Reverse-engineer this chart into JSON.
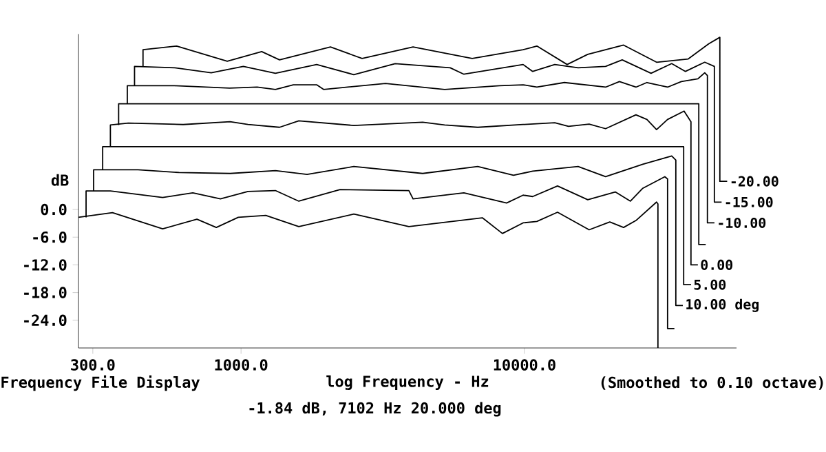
{
  "chart_data": {
    "type": "line",
    "log": "x",
    "xlabel": "log Frequency - Hz",
    "ylabel": "dB",
    "xlim": [
      267,
      56000
    ],
    "ylim": [
      -30,
      38
    ],
    "xticks": [
      {
        "value": 300,
        "label": "300.0"
      },
      {
        "value": 1000,
        "label": "1000.0"
      },
      {
        "value": 10000,
        "label": "10000.0"
      }
    ],
    "yticks": [
      {
        "value": 0,
        "label": "0.0"
      },
      {
        "value": -6,
        "label": "-6.0"
      },
      {
        "value": -12,
        "label": "-12.0"
      },
      {
        "value": -18,
        "label": "-18.0"
      },
      {
        "value": -24,
        "label": "-24.0"
      }
    ],
    "annotations": [
      "Frequency File Display",
      "(Smoothed to 0.10 octave)",
      "-1.84 dB, 7102 Hz 20.000 deg"
    ],
    "series": [
      {
        "color": "#000000",
        "x": [
          267,
          352,
          529,
          699,
          818,
          978,
          1223,
          1599,
          2500,
          3910,
          7102,
          8360,
          9890,
          11060,
          13080,
          16910,
          20000,
          22370,
          24730,
          29240,
          29570,
          29570
        ],
        "values": [
          -1.7,
          -0.7,
          -4.2,
          -2.1,
          -3.9,
          -1.7,
          -1.3,
          -3.7,
          -1.0,
          -3.7,
          -1.8,
          -5.2,
          -2.9,
          -2.6,
          -0.6,
          -4.4,
          -2.7,
          -3.9,
          -2.4,
          1.6,
          1.2,
          -30
        ]
      },
      {
        "color": "#000000",
        "x": [
          284,
          284,
          346,
          529,
          676,
          846,
          1058,
          1322,
          1599,
          2236,
          3910,
          4045,
          6113,
          8650,
          9890,
          10690,
          13080,
          16720,
          20910,
          23650,
          26150,
          31270,
          31980,
          31980,
          33800
        ],
        "values": [
          -1.7,
          4.0,
          4.0,
          2.6,
          3.6,
          2.3,
          3.9,
          4.1,
          1.8,
          4.3,
          4.1,
          2.3,
          3.6,
          1.4,
          3.1,
          2.8,
          5.1,
          2.1,
          3.8,
          1.8,
          4.6,
          7.1,
          6.6,
          -25.8,
          -25.8
        ]
      },
      {
        "name": "10.00 deg",
        "color": "#000000",
        "x": [
          302,
          302,
          433,
          605,
          915,
          1322,
          1710,
          2500,
          4374,
          6839,
          9147,
          10690,
          15460,
          19330,
          26150,
          33070,
          34200,
          34200,
          36200
        ],
        "values": [
          4.0,
          8.6,
          8.6,
          8.0,
          7.8,
          8.4,
          7.6,
          9.3,
          7.8,
          9.3,
          7.4,
          8.3,
          9.3,
          7.1,
          9.8,
          11.6,
          10.7,
          -20.8,
          -20.8
        ]
      },
      {
        "name": "5.00",
        "color": "#000000",
        "x": [
          325,
          325,
          36450,
          36450,
          38700
        ],
        "values": [
          8.6,
          13.6,
          13.6,
          -16.3,
          -16.3
        ]
      },
      {
        "name": "0.00",
        "color": "#000000",
        "x": [
          346,
          346,
          400,
          625,
          915,
          1058,
          1367,
          1599,
          2500,
          4374,
          5228,
          6839,
          9890,
          12790,
          14300,
          16910,
          19330,
          24730,
          27040,
          29240,
          31980,
          36570,
          38680,
          38680,
          40900
        ],
        "values": [
          13.6,
          18.3,
          18.7,
          18.4,
          19.0,
          18.4,
          17.8,
          19.2,
          18.2,
          18.9,
          18.3,
          17.8,
          18.4,
          18.8,
          18.0,
          18.5,
          17.5,
          20.5,
          19.5,
          17.3,
          19.5,
          21.3,
          19.0,
          -12.0,
          -12.0
        ]
      },
      {
        "color": "#000000",
        "x": [
          370,
          370,
          41210,
          41210,
          43600
        ],
        "values": [
          18.3,
          22.9,
          22.9,
          -7.6,
          -7.6
        ]
      },
      {
        "name": "-10.00",
        "color": "#000000",
        "x": [
          397,
          397,
          583,
          911,
          1140,
          1322,
          1529,
          1849,
          1956,
          3234,
          5228,
          8180,
          9890,
          11060,
          13830,
          19330,
          21630,
          24730,
          27040,
          31980,
          35760,
          40900,
          43250,
          44200,
          44200,
          46800
        ],
        "values": [
          22.9,
          26.8,
          26.8,
          26.3,
          26.5,
          26.0,
          27.0,
          27.0,
          26.0,
          27.3,
          26.0,
          26.8,
          27.0,
          26.5,
          27.5,
          26.5,
          27.7,
          26.5,
          27.5,
          26.5,
          27.7,
          28.3,
          29.6,
          29.0,
          -2.9,
          -2.9
        ]
      },
      {
        "name": "-15.00",
        "color": "#000000",
        "x": [
          421,
          421,
          583,
          785,
          1019,
          1322,
          1849,
          2500,
          3498,
          5470,
          6113,
          9890,
          10690,
          12790,
          15460,
          19330,
          22120,
          27960,
          33070,
          36980,
          43250,
          46770,
          46770,
          49600
        ],
        "values": [
          26.8,
          31.0,
          30.7,
          29.6,
          31.0,
          29.5,
          31.4,
          29.2,
          31.6,
          30.7,
          29.3,
          31.4,
          29.9,
          31.4,
          30.7,
          31.0,
          32.4,
          29.5,
          31.6,
          29.9,
          31.9,
          31.0,
          1.6,
          1.6
        ]
      },
      {
        "name": "-20.00",
        "color": "#000000",
        "x": [
          451,
          451,
          593,
          894,
          1183,
          1367,
          2068,
          2674,
          4045,
          6540,
          9890,
          11060,
          14140,
          16720,
          22370,
          29240,
          37830,
          44700,
          48900,
          48900,
          51900
        ],
        "values": [
          31.0,
          34.6,
          35.4,
          32.1,
          34.2,
          32.4,
          35.2,
          32.7,
          35.2,
          32.7,
          34.6,
          35.4,
          31.4,
          33.6,
          35.6,
          31.9,
          32.6,
          35.9,
          37.3,
          6.1,
          6.1
        ]
      }
    ]
  }
}
